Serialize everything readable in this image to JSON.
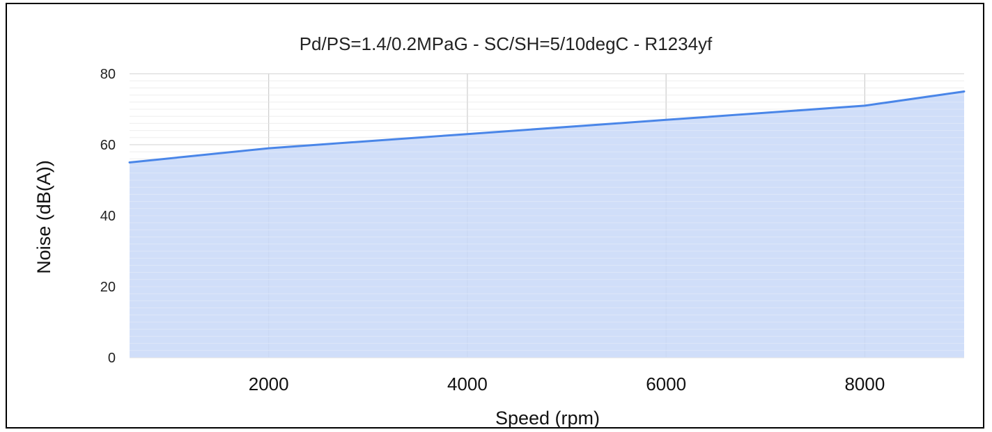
{
  "chart_data": {
    "type": "area",
    "title": "Pd/PS=1.4/0.2MPaG - SC/SH=5/10degC - R1234yf",
    "xlabel": "Speed (rpm)",
    "ylabel": "Noise (dB(A))",
    "x": [
      600,
      2000,
      4000,
      6000,
      8000,
      9000
    ],
    "series": [
      {
        "values": [
          55,
          59,
          63,
          67,
          71,
          75
        ]
      }
    ],
    "xlim": [
      600,
      9000
    ],
    "ylim": [
      0,
      80
    ],
    "xticks": [
      2000,
      4000,
      6000,
      8000
    ],
    "xtick_labels": [
      "2000",
      "4000",
      "6000",
      "8000"
    ],
    "yticks": [
      0,
      20,
      40,
      60,
      80
    ],
    "ytick_labels": [
      "0",
      "20",
      "40",
      "60",
      "80"
    ],
    "y_minor_step": 2,
    "grid": true,
    "legend": "none",
    "colors": {
      "line": "#4a86e8",
      "fill": "#c9daf8",
      "major_grid": "#cccccc",
      "minor_grid": "#e6e6e6",
      "frame": "#000000"
    }
  }
}
